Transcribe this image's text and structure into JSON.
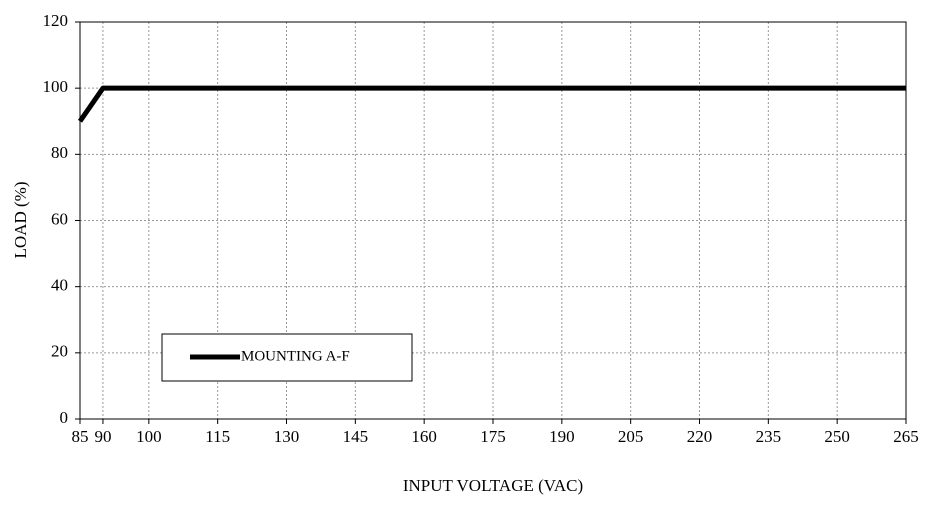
{
  "chart_data": {
    "type": "line",
    "x_label": "INPUT VOLTAGE (VAC)",
    "y_label": "LOAD (%)",
    "x": [
      85,
      90,
      265
    ],
    "series": [
      {
        "name": "MOUNTING A-F",
        "color": "#000000",
        "values": [
          90,
          100,
          100
        ]
      }
    ],
    "xlim": [
      85,
      265
    ],
    "xticks": [
      85,
      90,
      100,
      115,
      130,
      145,
      160,
      175,
      190,
      205,
      220,
      235,
      250,
      265
    ],
    "ylim": [
      0,
      120
    ],
    "yticks": [
      0,
      20,
      40,
      60,
      80,
      100,
      120
    ],
    "grid": true
  }
}
